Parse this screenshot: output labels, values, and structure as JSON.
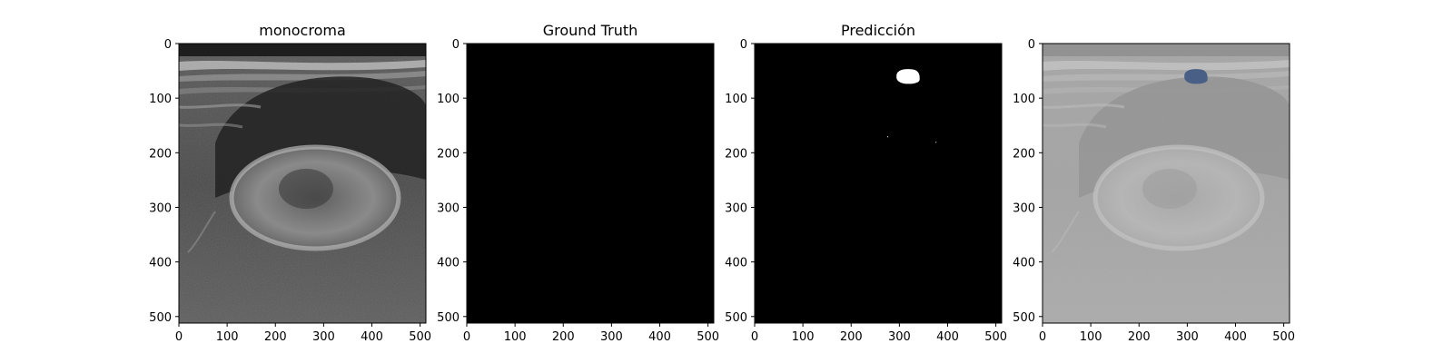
{
  "chart_data": [
    {
      "type": "image",
      "title": "monocroma",
      "content": "grayscale ultrasound image",
      "xlim": [
        0,
        512
      ],
      "ylim": [
        512,
        0
      ],
      "xticks": [
        0,
        100,
        200,
        300,
        400,
        500
      ],
      "yticks": [
        0,
        100,
        200,
        300,
        400,
        500
      ]
    },
    {
      "type": "image",
      "title": "Ground Truth",
      "content": "empty mask (all black)",
      "xlim": [
        0,
        512
      ],
      "ylim": [
        512,
        0
      ],
      "xticks": [
        0,
        100,
        200,
        300,
        400,
        500
      ],
      "yticks": [
        0,
        100,
        200,
        300,
        400,
        500
      ]
    },
    {
      "type": "image",
      "title": "Predicción",
      "content": "binary mask with one white region",
      "region": {
        "x_center": 318,
        "y_center": 61,
        "x_range": [
          295,
          343
        ],
        "y_range": [
          48,
          76
        ]
      },
      "xlim": [
        0,
        512
      ],
      "ylim": [
        512,
        0
      ],
      "xticks": [
        0,
        100,
        200,
        300,
        400,
        500
      ],
      "yticks": [
        0,
        100,
        200,
        300,
        400,
        500
      ]
    },
    {
      "type": "image",
      "title": "",
      "content": "overlay of prediction on faded ultrasound",
      "region": {
        "x_center": 318,
        "y_center": 61,
        "x_range": [
          295,
          343
        ],
        "y_range": [
          48,
          76
        ]
      },
      "overlay_color": "#4a5f85",
      "xlim": [
        0,
        512
      ],
      "ylim": [
        512,
        0
      ],
      "xticks": [
        0,
        100,
        200,
        300,
        400,
        500
      ],
      "yticks": [
        0,
        100,
        200,
        300,
        400,
        500
      ]
    }
  ]
}
